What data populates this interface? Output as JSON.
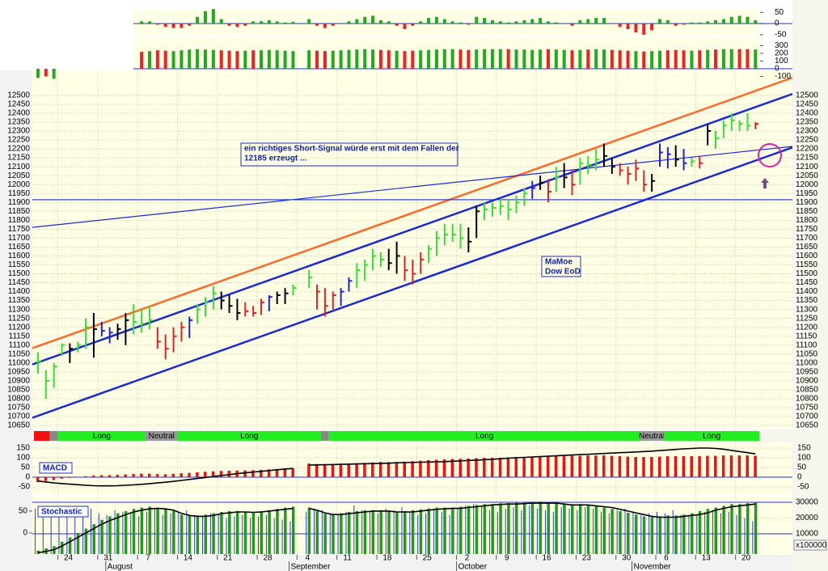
{
  "chart_data": [
    {
      "type": "ohlc",
      "categories": [
        null,
        null,
        null,
        24,
        null,
        null,
        null,
        null,
        31,
        null,
        null,
        null,
        null,
        7,
        null,
        null,
        null,
        null,
        14,
        null,
        null,
        null,
        null,
        21,
        null,
        null,
        null,
        null,
        28,
        null,
        null,
        null,
        null,
        4,
        null,
        null,
        null,
        null,
        11,
        null,
        null,
        null,
        null,
        18,
        null,
        null,
        null,
        null,
        25,
        null,
        null,
        null,
        null,
        2,
        null,
        null,
        null,
        null,
        9,
        null,
        null,
        null,
        null,
        16,
        null,
        null,
        null,
        null,
        23,
        null,
        null,
        null,
        null,
        30,
        null,
        null,
        null,
        null,
        6,
        null,
        null,
        null,
        null,
        13,
        null,
        null,
        null,
        null,
        20,
        null,
        null
      ],
      "months": [
        "August",
        "September",
        "October",
        "November"
      ],
      "high": [
        11060,
        10960,
        11000,
        11110,
        11110,
        11120,
        11250,
        11280,
        11230,
        11200,
        11220,
        11280,
        11330,
        11300,
        11320,
        11200,
        11160,
        11200,
        11230,
        11260,
        11330,
        11370,
        11430,
        11400,
        11380,
        11360,
        11340,
        11320,
        11360,
        11380,
        11400,
        11420,
        11440,
        null,
        11520,
        11440,
        11420,
        11400,
        11420,
        11480,
        11560,
        11580,
        11640,
        11620,
        11640,
        11680,
        11600,
        11580,
        11620,
        11660,
        11740,
        11780,
        11780,
        11780,
        11760,
        11880,
        11900,
        11900,
        11920,
        11920,
        11940,
        11980,
        12020,
        12050,
        12030,
        12100,
        12120,
        12080,
        12150,
        12160,
        12200,
        12230,
        12150,
        12120,
        12100,
        12140,
        12080,
        12060,
        12230,
        12210,
        12220,
        12200,
        12150,
        12160,
        12340,
        12300,
        12360,
        12400,
        12360,
        12400,
        12350
      ],
      "low": [
        10940,
        10800,
        10860,
        11040,
        11000,
        11060,
        11080,
        11030,
        11150,
        11110,
        11130,
        11100,
        11160,
        11170,
        11190,
        11080,
        11020,
        11060,
        11120,
        11140,
        11220,
        11260,
        11300,
        11300,
        11280,
        11240,
        11260,
        11260,
        11270,
        11290,
        11330,
        11330,
        11380,
        null,
        11420,
        11300,
        11260,
        11300,
        11320,
        11400,
        11420,
        11460,
        11520,
        11540,
        11520,
        11500,
        11460,
        11440,
        11500,
        11560,
        11600,
        11660,
        11680,
        11640,
        11620,
        11700,
        11800,
        11820,
        11830,
        11800,
        11840,
        11880,
        11920,
        11970,
        11900,
        11960,
        11980,
        11940,
        12000,
        12060,
        12080,
        12100,
        12060,
        12050,
        12000,
        12020,
        11960,
        11960,
        12100,
        12090,
        12100,
        12080,
        12100,
        12090,
        12220,
        12200,
        12260,
        12300,
        12300,
        12300,
        12310
      ],
      "close": [
        11010,
        10900,
        10980,
        11100,
        11080,
        11100,
        11200,
        11190,
        11180,
        11170,
        11190,
        11240,
        11230,
        11220,
        11240,
        11120,
        11080,
        11150,
        11200,
        11240,
        11300,
        11340,
        11390,
        11350,
        11320,
        11280,
        11290,
        11280,
        11340,
        11370,
        11380,
        11390,
        11420,
        null,
        11480,
        11400,
        11320,
        11380,
        11400,
        11460,
        11520,
        11550,
        11600,
        11580,
        11560,
        11600,
        11520,
        11500,
        11580,
        11640,
        11700,
        11720,
        11720,
        11700,
        11680,
        11850,
        11860,
        11870,
        11880,
        11860,
        11900,
        11950,
        11980,
        12010,
        11960,
        12040,
        12040,
        12000,
        12120,
        12110,
        12140,
        12160,
        12100,
        12080,
        12060,
        12090,
        12000,
        12020,
        12180,
        12170,
        12140,
        12120,
        12130,
        12120,
        12300,
        12260,
        12330,
        12360,
        12340,
        12330,
        12340
      ],
      "colors": [
        "#33e033",
        "#33e033",
        "#33e033",
        "#33e033",
        "#000000",
        "#33e033",
        "#33e033",
        "#000000",
        "#2020e0",
        "#2020e0",
        "#000000",
        "#000000",
        "#33e033",
        "#33e033",
        "#33e033",
        "#e82020",
        "#e82020",
        "#e82020",
        "#e82020",
        "#2020e0",
        "#33e033",
        "#33e033",
        "#33e033",
        "#000000",
        "#000000",
        "#000000",
        "#e82020",
        "#e82020",
        "#e82020",
        "#2020e0",
        "#000000",
        "#000000",
        "#33e033",
        null,
        "#33e033",
        "#e82020",
        "#e82020",
        "#e82020",
        "#2020e0",
        "#2020e0",
        "#33e033",
        "#33e033",
        "#33e033",
        "#33e033",
        "#000000",
        "#000000",
        "#e82020",
        "#e82020",
        "#e82020",
        "#33e033",
        "#33e033",
        "#33e033",
        "#33e033",
        "#33e033",
        "#000000",
        "#000000",
        "#33e033",
        "#33e033",
        "#33e033",
        "#33e033",
        "#33e033",
        "#33e033",
        "#2020e0",
        "#000000",
        "#e82020",
        "#33e033",
        "#000000",
        "#e82020",
        "#33e033",
        "#33e033",
        "#33e033",
        "#000000",
        "#000000",
        "#e82020",
        "#e82020",
        "#e82020",
        "#e82020",
        "#000000",
        "#2020e0",
        "#2020e0",
        "#000000",
        "#2020e0",
        "#33e033",
        "#e82020",
        "#000000",
        "#33e033",
        "#33e033",
        "#33e033",
        "#33e033",
        "#33e033",
        "#e82020"
      ],
      "ylim": [
        10632,
        12640
      ],
      "yticks": [
        10650,
        10700,
        10750,
        10800,
        10850,
        10900,
        10950,
        11000,
        11050,
        11100,
        11150,
        11200,
        11250,
        11300,
        11350,
        11400,
        11450,
        11500,
        11550,
        11600,
        11650,
        11700,
        11750,
        11800,
        11850,
        11900,
        11950,
        12000,
        12050,
        12100,
        12150,
        12200,
        12250,
        12300,
        12350,
        12400,
        12450,
        12500
      ],
      "grid": true,
      "trend_lines": [
        {
          "color": "#ff6a2a",
          "start": 11083,
          "end": 12599
        },
        {
          "color": "#1a2ad8",
          "start": 10992,
          "end": 12508
        },
        {
          "color": "#1a2ad8",
          "start": 10693,
          "end": 12208
        },
        {
          "color": "#1a2ad8",
          "start": 11760,
          "end": 12214
        },
        {
          "color": "#1a2ad8",
          "start": 11915,
          "end": 11915
        }
      ],
      "annotations": [
        {
          "lines": [
            "ein richtiges Short-Signal würde erst mit dem Fallen der",
            "12185 erzeugt ..."
          ]
        },
        {
          "lines": [
            "MaMoe",
            "Dow EoD"
          ]
        }
      ],
      "status": [
        {
          "color": "#ee1111",
          "days": 2
        },
        {
          "color": "#888888",
          "days": 1
        },
        {
          "label": "Long",
          "color": "#22ee22",
          "days": 11
        },
        {
          "label": "Neutral",
          "color": "#999999",
          "days": 4
        },
        {
          "label": "Long",
          "color": "#22ee22",
          "days": 18
        },
        {
          "color": "#888888",
          "days": 1
        },
        {
          "label": "Long",
          "color": "#22ee22",
          "days": 39
        },
        {
          "label": "Neutral",
          "color": "#999999",
          "days": 3
        },
        {
          "label": "Long",
          "color": "#22ee22",
          "days": 12
        }
      ]
    },
    {
      "type": "macd",
      "title": "MACD",
      "color": "#ee1111",
      "line_color": "#000000",
      "histogram": [
        -25,
        -20,
        -15,
        -8,
        -3,
        2,
        5,
        8,
        10,
        10,
        12,
        14,
        16,
        18,
        18,
        16,
        15,
        17,
        20,
        22,
        25,
        28,
        30,
        32,
        33,
        34,
        35,
        36,
        38,
        40,
        42,
        44,
        46,
        null,
        70,
        68,
        66,
        66,
        68,
        70,
        72,
        74,
        76,
        78,
        78,
        78,
        80,
        82,
        85,
        88,
        90,
        92,
        94,
        95,
        96,
        98,
        100,
        100,
        100,
        102,
        104,
        104,
        106,
        106,
        108,
        108,
        108,
        110,
        110,
        112,
        112,
        112,
        110,
        108,
        106,
        104,
        104,
        104,
        106,
        108,
        108,
        108,
        108,
        108,
        110,
        110,
        112,
        112,
        112,
        112,
        110
      ],
      "line": [
        -20,
        -25,
        -30,
        -33,
        -36,
        -39,
        -42,
        -44,
        -45,
        -45,
        -44,
        -42,
        -40,
        -37,
        -34,
        -30,
        -26,
        -22,
        -17,
        -12,
        -7,
        -2,
        3,
        8,
        13,
        18,
        22,
        26,
        30,
        34,
        38,
        42,
        45,
        null,
        62,
        63,
        64,
        65,
        66,
        67,
        68,
        69,
        70,
        71,
        72,
        74,
        75,
        76,
        77,
        78,
        79,
        80,
        82,
        84,
        86,
        88,
        90,
        92,
        95,
        98,
        100,
        102,
        104,
        106,
        108,
        110,
        112,
        114,
        116,
        118,
        120,
        122,
        124,
        126,
        128,
        130,
        132,
        134,
        137,
        140,
        143,
        146,
        148,
        150,
        150,
        148,
        144,
        138,
        132,
        126,
        120
      ],
      "ylim": [
        -92,
        175
      ],
      "yticks": [
        150,
        100,
        50,
        0,
        -50
      ]
    },
    {
      "type": "stochastic",
      "title": "Stochastic",
      "color": "#229922",
      "line_color": "#000000",
      "volume_color": "#2a3ad8",
      "y2_unit": "x100000",
      "bars": [
        -40,
        -35,
        -30,
        -20,
        -10,
        0,
        10,
        20,
        30,
        38,
        45,
        50,
        55,
        58,
        60,
        58,
        55,
        50,
        42,
        40,
        40,
        42,
        45,
        48,
        50,
        50,
        48,
        48,
        50,
        52,
        55,
        58,
        60,
        null,
        58,
        50,
        44,
        42,
        45,
        48,
        50,
        52,
        52,
        52,
        50,
        48,
        50,
        52,
        54,
        56,
        58,
        58,
        58,
        60,
        62,
        64,
        66,
        66,
        68,
        68,
        70,
        70,
        70,
        72,
        70,
        68,
        66,
        64,
        66,
        64,
        62,
        58,
        55,
        50,
        46,
        42,
        38,
        36,
        38,
        40,
        40,
        42,
        45,
        50,
        55,
        58,
        62,
        66,
        66,
        68,
        70
      ],
      "line": [
        -45,
        -42,
        -38,
        -30,
        -20,
        -10,
        0,
        10,
        20,
        28,
        35,
        42,
        48,
        52,
        55,
        56,
        55,
        52,
        45,
        40,
        38,
        38,
        40,
        44,
        46,
        48,
        48,
        47,
        48,
        50,
        52,
        54,
        56,
        null,
        56,
        52,
        46,
        42,
        42,
        44,
        46,
        48,
        50,
        50,
        50,
        48,
        48,
        48,
        50,
        52,
        54,
        55,
        56,
        56,
        58,
        60,
        62,
        64,
        65,
        66,
        66,
        67,
        68,
        68,
        68,
        68,
        66,
        64,
        64,
        64,
        62,
        60,
        58,
        54,
        50,
        46,
        42,
        38,
        36,
        36,
        36,
        38,
        40,
        42,
        46,
        52,
        56,
        60,
        62,
        64,
        66
      ],
      "volume": [
        26000,
        24000,
        27000,
        25000,
        22000,
        23000,
        24000,
        26000,
        23000,
        22000,
        25000,
        24000,
        23000,
        21000,
        24000,
        26000,
        22000,
        23000,
        24000,
        25000,
        22000,
        21000,
        23000,
        22000,
        20000,
        21000,
        22000,
        20000,
        21000,
        22000,
        20000,
        19000,
        18000,
        null,
        24000,
        26000,
        25000,
        23000,
        22000,
        24000,
        28000,
        25000,
        24000,
        23000,
        26000,
        25000,
        27000,
        24000,
        22000,
        23000,
        25000,
        24000,
        22000,
        26000,
        28000,
        29000,
        27000,
        25000,
        24000,
        26000,
        27000,
        25000,
        28000,
        26000,
        25000,
        24000,
        27000,
        26000,
        25000,
        27000,
        26000,
        24000,
        23000,
        25000,
        26000,
        24000,
        22000,
        23000,
        24000,
        23000,
        25000,
        22000,
        21000,
        22000,
        24000,
        25000,
        23000,
        24000,
        22000,
        20000,
        18000
      ],
      "ylim": [
        -48,
        83
      ],
      "yticks": [
        50,
        0
      ],
      "y2lim": [
        -2820,
        33590
      ],
      "y2ticks": [
        10000,
        20000,
        30000
      ]
    },
    {
      "type": "oscillator",
      "color_by": "sign",
      "up_color": "#22aa22",
      "down_color": "#ee2222",
      "values": [
        null,
        null,
        null,
        null,
        null,
        null,
        null,
        null,
        null,
        null,
        null,
        null,
        null,
        10,
        10,
        -5,
        -15,
        -20,
        -20,
        -10,
        30,
        55,
        65,
        20,
        -10,
        -15,
        -10,
        10,
        10,
        15,
        10,
        5,
        8,
        null,
        20,
        -10,
        -20,
        -10,
        0,
        10,
        20,
        30,
        35,
        15,
        10,
        -10,
        -25,
        -10,
        10,
        25,
        30,
        20,
        10,
        5,
        -5,
        30,
        25,
        15,
        10,
        5,
        10,
        15,
        20,
        25,
        10,
        5,
        0,
        -10,
        15,
        20,
        25,
        25,
        0,
        -15,
        -25,
        -40,
        -50,
        -30,
        20,
        15,
        -10,
        -5,
        5,
        5,
        10,
        15,
        20,
        30,
        35,
        30,
        15
      ],
      "ylim": [
        -54,
        62
      ],
      "yticks": [
        50,
        0,
        -50
      ]
    },
    {
      "type": "oscillator",
      "color_by": "close",
      "up_color": "#22aa22",
      "down_color": "#ee2222",
      "values": [
        -120,
        -100,
        -130,
        null,
        null,
        null,
        null,
        null,
        null,
        null,
        null,
        null,
        null,
        220,
        230,
        240,
        235,
        230,
        240,
        250,
        255,
        250,
        245,
        240,
        235,
        230,
        235,
        240,
        240,
        245,
        240,
        235,
        230,
        null,
        240,
        235,
        230,
        235,
        240,
        245,
        250,
        255,
        250,
        245,
        240,
        235,
        230,
        235,
        240,
        245,
        250,
        255,
        255,
        250,
        245,
        250,
        255,
        255,
        255,
        255,
        250,
        250,
        245,
        250,
        255,
        250,
        245,
        240,
        245,
        250,
        255,
        250,
        245,
        240,
        235,
        230,
        225,
        230,
        235,
        240,
        245,
        240,
        235,
        240,
        245,
        250,
        255,
        255,
        255,
        255,
        250
      ],
      "ylim": [
        -168,
        410
      ],
      "yticks": [
        300,
        200,
        100,
        0,
        -100
      ]
    }
  ]
}
